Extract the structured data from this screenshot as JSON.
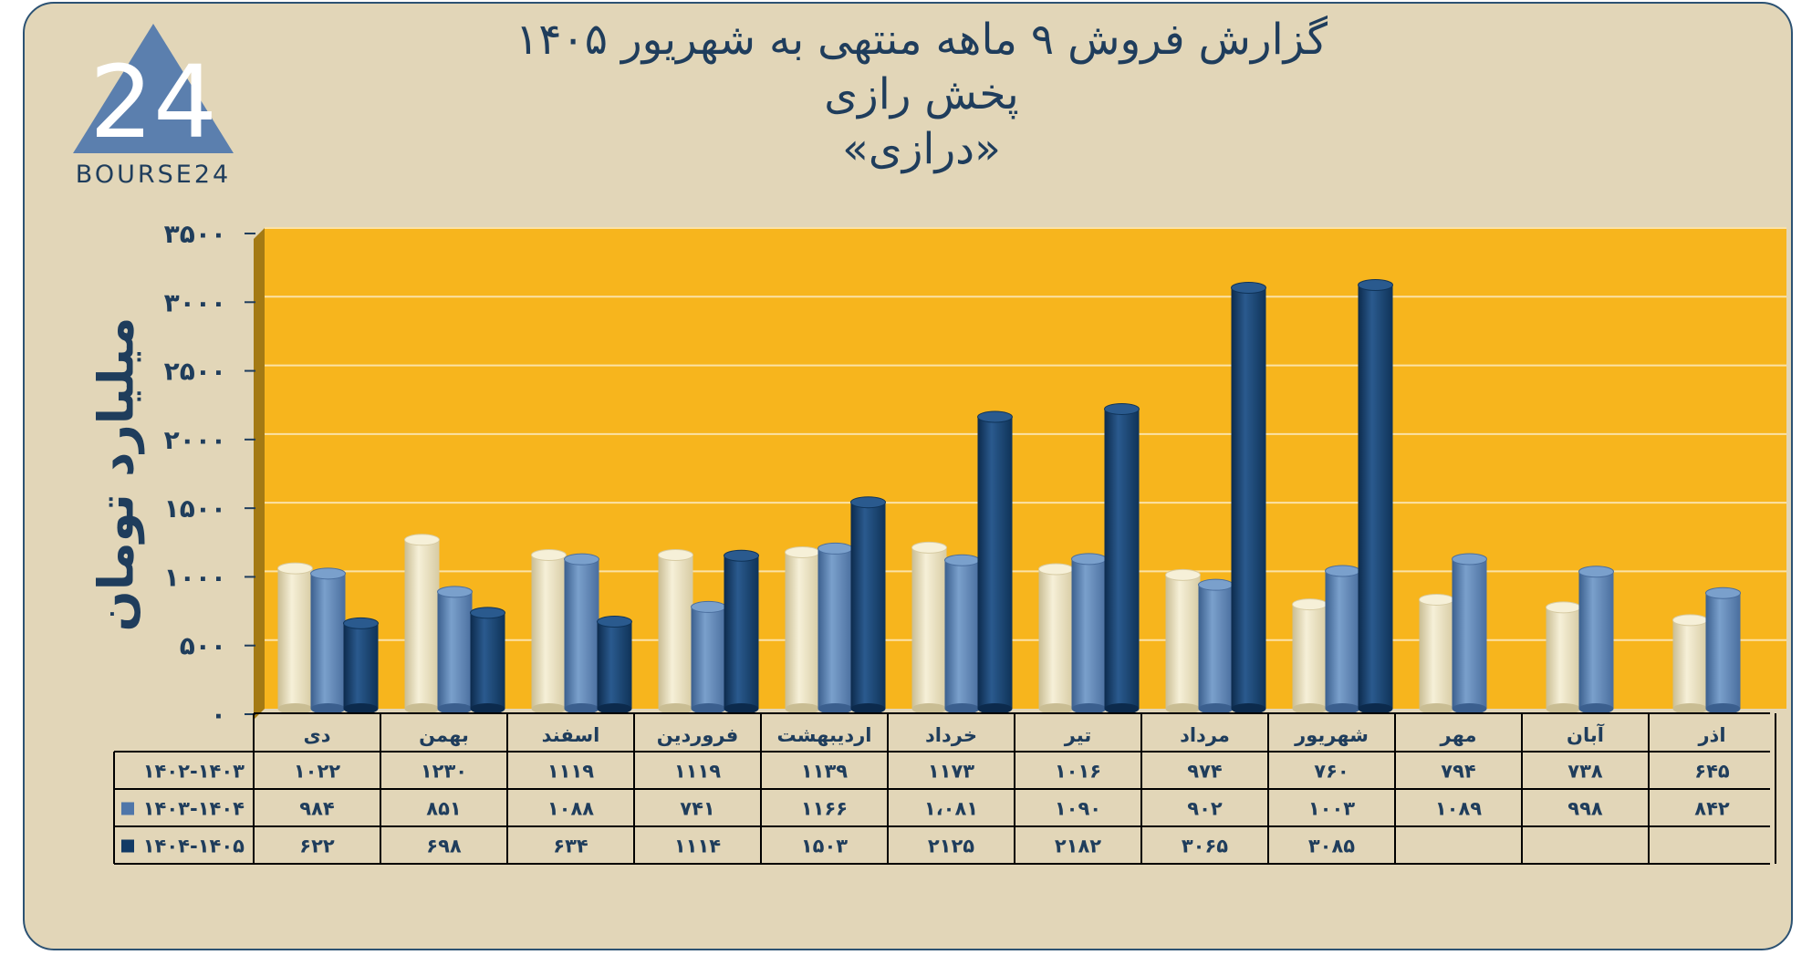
{
  "header": {
    "title_line1": "گزارش  فروش ۹ ماهه منتهی به شهریور ۱۴۰۵",
    "title_line2": "پخش رازی",
    "title_line3": "«درازی»"
  },
  "logo": {
    "numeral": "24",
    "text": "BOURSE24"
  },
  "colors": {
    "plot_background": "#f7b51d",
    "panel_background": "#e2d6b8",
    "series": [
      "#e6dcb8",
      "#4f76a9",
      "#123a65"
    ],
    "text": "#1f3d5c"
  },
  "chart_data": {
    "type": "bar",
    "orientation": "3d-cylinder",
    "ylabel": "میلیارد تومان",
    "ylim": [
      0,
      3500
    ],
    "yticks": [
      0,
      500,
      1000,
      1500,
      2000,
      2500,
      3000,
      3500
    ],
    "ytick_labels": [
      "۰",
      "۵۰۰",
      "۱۰۰۰",
      "۱۵۰۰",
      "۲۰۰۰",
      "۲۵۰۰",
      "۳۰۰۰",
      "۳۵۰۰"
    ],
    "grid": true,
    "categories": [
      "دی",
      "بهمن",
      "اسفند",
      "فروردین",
      "اردیبهشت",
      "خرداد",
      "تیر",
      "مرداد",
      "شهریور",
      "مهر",
      "آبان",
      "اذر"
    ],
    "series": [
      {
        "name": "۱۴۰۲-۱۴۰۳",
        "values": [
          1022,
          1230,
          1119,
          1119,
          1139,
          1173,
          1016,
          974,
          760,
          794,
          738,
          645
        ],
        "labels": [
          "۱۰۲۲",
          "۱۲۳۰",
          "۱۱۱۹",
          "۱۱۱۹",
          "۱۱۳۹",
          "۱۱۷۳",
          "۱۰۱۶",
          "۹۷۴",
          "۷۶۰",
          "۷۹۴",
          "۷۳۸",
          "۶۴۵"
        ]
      },
      {
        "name": "۱۴۰۳-۱۴۰۴",
        "values": [
          984,
          851,
          1088,
          741,
          1166,
          1081,
          1090,
          902,
          1003,
          1089,
          998,
          842
        ],
        "labels": [
          "۹۸۴",
          "۸۵۱",
          "۱۰۸۸",
          "۷۴۱",
          "۱۱۶۶",
          "۱،۰۸۱",
          "۱۰۹۰",
          "۹۰۲",
          "۱۰۰۳",
          "۱۰۸۹",
          "۹۹۸",
          "۸۴۲"
        ]
      },
      {
        "name": "۱۴۰۴-۱۴۰۵",
        "values": [
          622,
          698,
          634,
          1114,
          1503,
          2125,
          2182,
          3065,
          3085,
          null,
          null,
          null
        ],
        "labels": [
          "۶۲۲",
          "۶۹۸",
          "۶۳۴",
          "۱۱۱۴",
          "۱۵۰۳",
          "۲۱۲۵",
          "۲۱۸۲",
          "۳۰۶۵",
          "۳۰۸۵",
          "",
          "",
          ""
        ]
      }
    ]
  }
}
